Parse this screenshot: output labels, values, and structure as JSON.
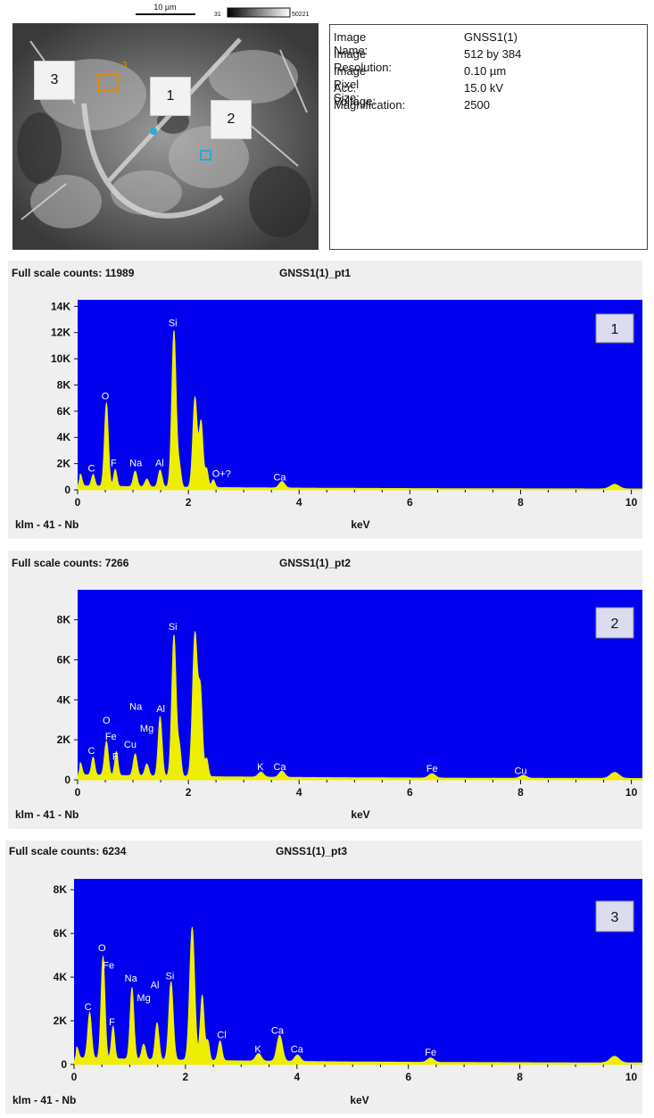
{
  "sem": {
    "scale_label": "10 µm",
    "cbar_min": "31",
    "cbar_max": "50221",
    "markers": [
      "3",
      "1",
      "2"
    ],
    "small_marker": "3"
  },
  "info": {
    "rows": [
      {
        "key": "Image Name:",
        "value": "GNSS1(1)"
      },
      {
        "key": "Image Resolution:",
        "value": "512 by 384"
      },
      {
        "key": "Image Pixel Size:",
        "value": "0.10 µm"
      },
      {
        "key": "Acc. Voltage:",
        "value": "15.0 kV"
      },
      {
        "key": "Magnification:",
        "value": "2500"
      }
    ]
  },
  "colors": {
    "plot_bg": "#0000ee",
    "spectrum": "#eeee00",
    "panel_bg": "#efefef",
    "label": "#ffffff"
  },
  "chart_data": [
    {
      "type": "area",
      "title": "GNSS1(1)_pt1",
      "full_scale_label": "Full scale counts: 11989",
      "badge": "1",
      "xlabel": "keV",
      "footer_left": "klm - 41 - Nb",
      "xlim": [
        0,
        10.2
      ],
      "ylim": [
        0,
        14500
      ],
      "xticks": [
        0,
        2,
        4,
        6,
        8,
        10
      ],
      "xtick_labels": [
        "0",
        "2",
        "4",
        "6",
        "8",
        "10"
      ],
      "yticks": [
        0,
        2000,
        4000,
        6000,
        8000,
        10000,
        12000,
        14000
      ],
      "ytick_labels": [
        "0",
        "2K",
        "4K",
        "6K",
        "8K",
        "10K",
        "12K",
        "14K"
      ],
      "baseline": 250,
      "peaks": [
        {
          "x": 0.05,
          "y": 900,
          "w": 0.03
        },
        {
          "x": 0.28,
          "y": 900,
          "w": 0.03
        },
        {
          "x": 0.52,
          "y": 6400,
          "w": 0.035
        },
        {
          "x": 0.68,
          "y": 1300,
          "w": 0.03
        },
        {
          "x": 1.04,
          "y": 1200,
          "w": 0.035
        },
        {
          "x": 1.25,
          "y": 600,
          "w": 0.035
        },
        {
          "x": 1.49,
          "y": 1300,
          "w": 0.035
        },
        {
          "x": 1.74,
          "y": 12000,
          "w": 0.04
        },
        {
          "x": 1.84,
          "y": 1500,
          "w": 0.03
        },
        {
          "x": 2.12,
          "y": 6900,
          "w": 0.04
        },
        {
          "x": 2.23,
          "y": 5000,
          "w": 0.035
        },
        {
          "x": 2.33,
          "y": 1400,
          "w": 0.03
        },
        {
          "x": 2.45,
          "y": 600,
          "w": 0.03
        },
        {
          "x": 3.69,
          "y": 500,
          "w": 0.05
        },
        {
          "x": 9.7,
          "y": 350,
          "w": 0.08
        }
      ],
      "labels": [
        {
          "text": "C",
          "x": 0.25,
          "y": 1400
        },
        {
          "text": "O",
          "x": 0.5,
          "y": 6900
        },
        {
          "text": "F",
          "x": 0.65,
          "y": 1800
        },
        {
          "text": "Na",
          "x": 1.05,
          "y": 1800
        },
        {
          "text": "Al",
          "x": 1.48,
          "y": 1800
        },
        {
          "text": "Si",
          "x": 1.72,
          "y": 12500
        },
        {
          "text": "O+?",
          "x": 2.6,
          "y": 1000
        },
        {
          "text": "Ca",
          "x": 3.65,
          "y": 700
        }
      ]
    },
    {
      "type": "area",
      "title": "GNSS1(1)_pt2",
      "full_scale_label": "Full scale counts: 7266",
      "badge": "2",
      "xlabel": "keV",
      "footer_left": "klm - 41 - Nb",
      "xlim": [
        0,
        10.2
      ],
      "ylim": [
        0,
        9500
      ],
      "xticks": [
        0,
        2,
        4,
        6,
        8,
        10
      ],
      "xtick_labels": [
        "0",
        "2",
        "4",
        "6",
        "8",
        "10"
      ],
      "yticks": [
        0,
        2000,
        4000,
        6000,
        8000
      ],
      "ytick_labels": [
        "0",
        "2K",
        "4K",
        "6K",
        "8K"
      ],
      "baseline": 200,
      "peaks": [
        {
          "x": 0.05,
          "y": 600,
          "w": 0.03
        },
        {
          "x": 0.28,
          "y": 900,
          "w": 0.03
        },
        {
          "x": 0.52,
          "y": 1700,
          "w": 0.035
        },
        {
          "x": 0.7,
          "y": 1200,
          "w": 0.03
        },
        {
          "x": 1.04,
          "y": 1100,
          "w": 0.035
        },
        {
          "x": 1.25,
          "y": 600,
          "w": 0.035
        },
        {
          "x": 1.49,
          "y": 3000,
          "w": 0.035
        },
        {
          "x": 1.74,
          "y": 7100,
          "w": 0.04
        },
        {
          "x": 1.84,
          "y": 1400,
          "w": 0.03
        },
        {
          "x": 2.12,
          "y": 7200,
          "w": 0.045
        },
        {
          "x": 2.22,
          "y": 4000,
          "w": 0.035
        },
        {
          "x": 2.33,
          "y": 900,
          "w": 0.03
        },
        {
          "x": 3.31,
          "y": 250,
          "w": 0.05
        },
        {
          "x": 3.69,
          "y": 320,
          "w": 0.05
        },
        {
          "x": 6.4,
          "y": 220,
          "w": 0.06
        },
        {
          "x": 8.05,
          "y": 150,
          "w": 0.06
        },
        {
          "x": 9.7,
          "y": 300,
          "w": 0.08
        }
      ],
      "labels": [
        {
          "text": "C",
          "x": 0.25,
          "y": 1300
        },
        {
          "text": "O",
          "x": 0.52,
          "y": 2800
        },
        {
          "text": "Fe",
          "x": 0.6,
          "y": 2000
        },
        {
          "text": "F",
          "x": 0.68,
          "y": 1000
        },
        {
          "text": "Cu",
          "x": 0.95,
          "y": 1600
        },
        {
          "text": "Na",
          "x": 1.05,
          "y": 3500
        },
        {
          "text": "Mg",
          "x": 1.25,
          "y": 2400
        },
        {
          "text": "Al",
          "x": 1.5,
          "y": 3400
        },
        {
          "text": "Si",
          "x": 1.72,
          "y": 7500
        },
        {
          "text": "K",
          "x": 3.3,
          "y": 500
        },
        {
          "text": "Ca",
          "x": 3.65,
          "y": 500
        },
        {
          "text": "Fe",
          "x": 6.4,
          "y": 400
        },
        {
          "text": "Cu",
          "x": 8.0,
          "y": 300
        }
      ]
    },
    {
      "type": "area",
      "title": "GNSS1(1)_pt3",
      "full_scale_label": "Full scale counts: 6234",
      "badge": "3",
      "xlabel": "keV",
      "footer_left": "klm - 41 - Nb",
      "xlim": [
        0,
        10.2
      ],
      "ylim": [
        0,
        8500
      ],
      "xticks": [
        0,
        2,
        4,
        6,
        8,
        10
      ],
      "xtick_labels": [
        "0",
        "2",
        "4",
        "6",
        "8",
        "10"
      ],
      "yticks": [
        0,
        2000,
        4000,
        6000,
        8000
      ],
      "ytick_labels": [
        "0",
        "2K",
        "4K",
        "6K",
        "8K"
      ],
      "baseline": 250,
      "peaks": [
        {
          "x": 0.05,
          "y": 500,
          "w": 0.03
        },
        {
          "x": 0.28,
          "y": 2100,
          "w": 0.035
        },
        {
          "x": 0.52,
          "y": 4700,
          "w": 0.035
        },
        {
          "x": 0.7,
          "y": 1500,
          "w": 0.03
        },
        {
          "x": 1.04,
          "y": 3300,
          "w": 0.035
        },
        {
          "x": 1.25,
          "y": 700,
          "w": 0.035
        },
        {
          "x": 1.49,
          "y": 1700,
          "w": 0.035
        },
        {
          "x": 1.74,
          "y": 3600,
          "w": 0.04
        },
        {
          "x": 2.12,
          "y": 6100,
          "w": 0.045
        },
        {
          "x": 2.3,
          "y": 3000,
          "w": 0.035
        },
        {
          "x": 2.4,
          "y": 900,
          "w": 0.03
        },
        {
          "x": 2.62,
          "y": 900,
          "w": 0.035
        },
        {
          "x": 3.31,
          "y": 350,
          "w": 0.05
        },
        {
          "x": 3.69,
          "y": 1200,
          "w": 0.05
        },
        {
          "x": 4.01,
          "y": 300,
          "w": 0.05
        },
        {
          "x": 6.4,
          "y": 200,
          "w": 0.06
        },
        {
          "x": 9.7,
          "y": 300,
          "w": 0.08
        }
      ],
      "labels": [
        {
          "text": "C",
          "x": 0.25,
          "y": 2500
        },
        {
          "text": "O",
          "x": 0.5,
          "y": 5200
        },
        {
          "text": "Fe",
          "x": 0.62,
          "y": 4400
        },
        {
          "text": "F",
          "x": 0.68,
          "y": 1800
        },
        {
          "text": "Na",
          "x": 1.02,
          "y": 3800
        },
        {
          "text": "Mg",
          "x": 1.25,
          "y": 2900
        },
        {
          "text": "Al",
          "x": 1.45,
          "y": 3500
        },
        {
          "text": "Si",
          "x": 1.72,
          "y": 3900
        },
        {
          "text": "Cl",
          "x": 2.65,
          "y": 1200
        },
        {
          "text": "K",
          "x": 3.3,
          "y": 550
        },
        {
          "text": "Ca",
          "x": 3.65,
          "y": 1400
        },
        {
          "text": "Ca",
          "x": 4.0,
          "y": 550
        },
        {
          "text": "Fe",
          "x": 6.4,
          "y": 400
        }
      ]
    }
  ]
}
